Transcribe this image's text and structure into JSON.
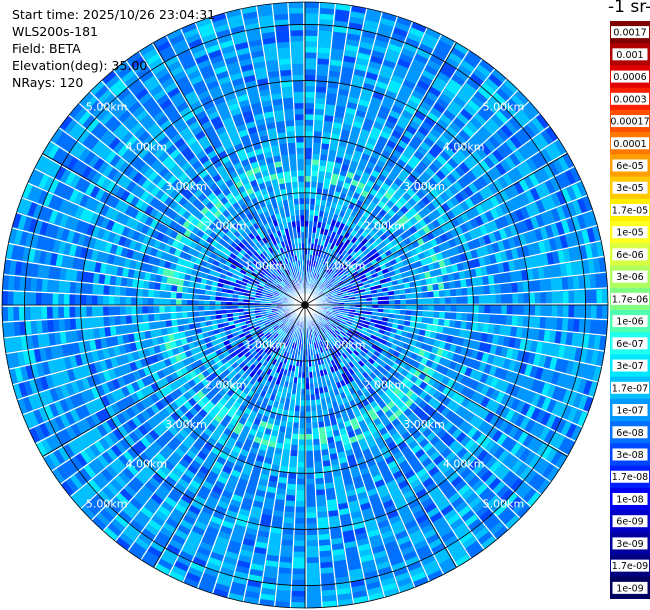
{
  "header": {
    "start_time": "Start time: 2025/10/26 23:04:31",
    "instrument": "WLS200s-181",
    "field": "Field: BETA",
    "elevation": "Elevation(deg): 35.00",
    "nrays": "NRays: 120"
  },
  "colorbar": {
    "title": "-1 sr-",
    "ticks": [
      "0.0017",
      "0.001",
      "0.0006",
      "0.0003",
      "0.00017",
      "0.0001",
      "6e-05",
      "3e-05",
      "1.7e-05",
      "1e-05",
      "6e-06",
      "3e-06",
      "1.7e-06",
      "1e-06",
      "6e-07",
      "3e-07",
      "1.7e-07",
      "1e-07",
      "6e-08",
      "3e-08",
      "1.7e-08",
      "1e-08",
      "6e-09",
      "3e-09",
      "1.7e-09",
      "1e-09"
    ],
    "colors": [
      "#800000",
      "#b00000",
      "#e00000",
      "#ff2000",
      "#ff5000",
      "#ff7800",
      "#ffa000",
      "#ffc800",
      "#fff000",
      "#ffff20",
      "#d8ff40",
      "#b0ff60",
      "#80ff80",
      "#50ffb0",
      "#20fff0",
      "#00e8ff",
      "#00c0ff",
      "#0098ff",
      "#0070ff",
      "#0048ff",
      "#0020ff",
      "#0000f0",
      "#0000c8",
      "#0000a0",
      "#000080",
      "#000060"
    ]
  },
  "chart_data": {
    "type": "heatmap",
    "projection": "polar PPI",
    "field": "BETA",
    "elevation_deg": 35.0,
    "n_rays": 120,
    "max_range_km": 5.4,
    "range_rings_km": [
      1,
      2,
      3,
      4,
      5
    ],
    "ring_labels": [
      "1.00km",
      "2.00km",
      "3.00km",
      "4.00km",
      "5.00km"
    ],
    "scale": "log",
    "vmin": 1e-09,
    "vmax": 0.0017,
    "background_level": 1e-07,
    "features": [
      {
        "range_km": 2.35,
        "level": 1.7e-06
      },
      {
        "range_km": 1.3,
        "level": 1e-08
      }
    ]
  }
}
